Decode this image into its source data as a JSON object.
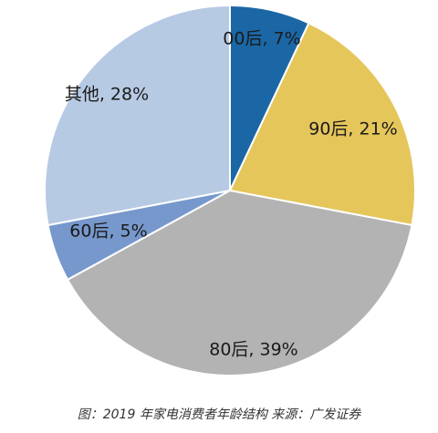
{
  "chart_data": {
    "type": "pie",
    "series": [
      {
        "name": "00后",
        "value": 7,
        "label": "00后, 7%",
        "color": "#1b67a6"
      },
      {
        "name": "90后",
        "value": 21,
        "label": "90后, 21%",
        "color": "#e5c65b"
      },
      {
        "name": "80后",
        "value": 39,
        "label": "80后, 39%",
        "color": "#b3b3b3"
      },
      {
        "name": "60后",
        "value": 5,
        "label": "60后, 5%",
        "color": "#7798cc"
      },
      {
        "name": "其他",
        "value": 28,
        "label": "其他, 28%",
        "color": "#b7cae4"
      }
    ],
    "start_direction": "12 o'clock",
    "direction": "clockwise",
    "legend": "none"
  },
  "caption": "图：2019 年家电消费者年龄结构 来源：广发证券"
}
